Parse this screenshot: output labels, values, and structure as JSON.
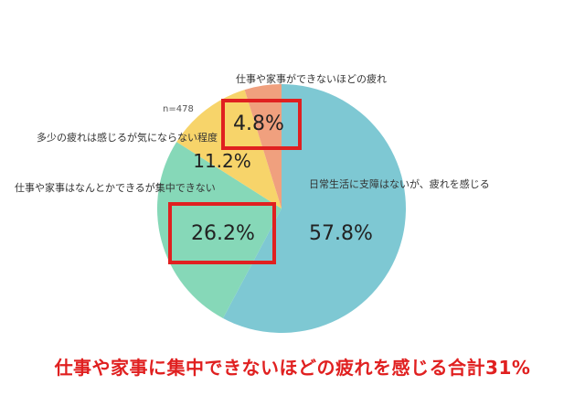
{
  "chart_data": {
    "type": "pie",
    "sample_label": "n=478",
    "slices": [
      {
        "label": "日常生活に支障はないが、疲れを感じる",
        "value": 57.8,
        "value_label": "57.8%",
        "color": "#7ec8d3"
      },
      {
        "label": "仕事や家事はなんとかできるが集中できない",
        "value": 26.2,
        "value_label": "26.2%",
        "color": "#86d8b8"
      },
      {
        "label": "多少の疲れは感じるが気にならない程度",
        "value": 11.2,
        "value_label": "11.2%",
        "color": "#f7d46a"
      },
      {
        "label": "仕事や家事ができないほどの疲れ",
        "value": 4.8,
        "value_label": "4.8%",
        "color": "#f0a07e"
      }
    ],
    "highlight_color": "#e02020"
  },
  "headline": "仕事や家事に集中できないほどの疲れを感じる合計31%"
}
